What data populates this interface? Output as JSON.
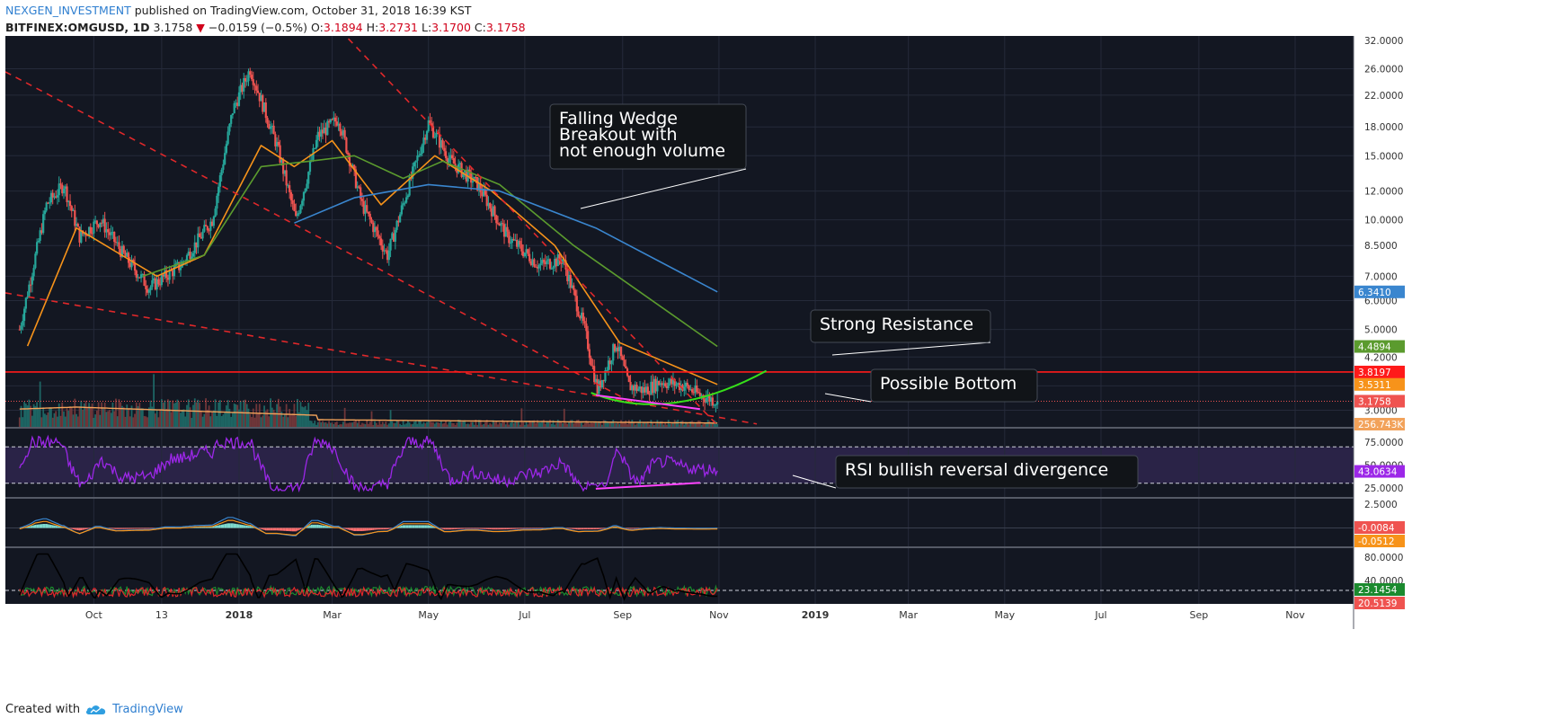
{
  "header": {
    "author": "NEXGEN_INVESTMENT",
    "published": "published on TradingView.com, October 31, 2018 16:39 KST",
    "symbol": "BITFINEX:OMGUSD, 1D",
    "last": "3.1758",
    "change_arrow": "▼",
    "change": "−0.0159 (−0.5%)",
    "o_label": "O:",
    "o": "3.1894",
    "h_label": "H:",
    "h": "3.2731",
    "l_label": "L:",
    "l": "3.1700",
    "c_label": "C:",
    "c": "3.1758"
  },
  "footer": {
    "created_with": "Created with",
    "brand": "TradingView",
    "logo_icon": "tradingview-cloud-icon"
  },
  "colors": {
    "background": "#131722",
    "grid": "#252a3a",
    "up": "#26a69a",
    "down": "#ef5350",
    "ma_orange": "#f7931a",
    "ma_green": "#5b9b2e",
    "ma_blue": "#3a86cf",
    "resistance": "#ff1a1a",
    "trendline": "#e0282a",
    "rsi": "#9c27e8",
    "bottom_curve": "#36e01a",
    "divergence": "#ff44ff"
  },
  "chart_data": {
    "type": "candlestick",
    "x_axis_labels": [
      "Oct",
      "13",
      "2018",
      "Mar",
      "May",
      "Jul",
      "Sep",
      "Nov",
      "2019",
      "Mar",
      "May",
      "Jul",
      "Sep",
      "Nov"
    ],
    "y_scale": "log",
    "price_axis": {
      "ylim": [
        2.7,
        32.0
      ],
      "ticks": [
        "32.0000",
        "26.0000",
        "22.0000",
        "18.0000",
        "15.0000",
        "12.0000",
        "10.0000",
        "8.5000",
        "7.0000",
        "6.0000",
        "5.0000",
        "4.2000",
        "3.5000",
        "3.0000"
      ]
    },
    "price_close_approx": [
      {
        "date": "2017-08-15",
        "close": 5.0
      },
      {
        "date": "2017-09-01",
        "close": 11.0
      },
      {
        "date": "2017-09-12",
        "close": 12.5
      },
      {
        "date": "2017-09-22",
        "close": 9.0
      },
      {
        "date": "2017-10-05",
        "close": 10.0
      },
      {
        "date": "2017-10-20",
        "close": 8.0
      },
      {
        "date": "2017-11-05",
        "close": 6.5
      },
      {
        "date": "2017-11-25",
        "close": 7.5
      },
      {
        "date": "2017-12-15",
        "close": 10.0
      },
      {
        "date": "2017-12-28",
        "close": 20.0
      },
      {
        "date": "2018-01-08",
        "close": 26.0
      },
      {
        "date": "2018-01-25",
        "close": 16.0
      },
      {
        "date": "2018-02-06",
        "close": 10.0
      },
      {
        "date": "2018-02-20",
        "close": 17.0
      },
      {
        "date": "2018-03-05",
        "close": 19.0
      },
      {
        "date": "2018-03-20",
        "close": 11.0
      },
      {
        "date": "2018-04-05",
        "close": 8.0
      },
      {
        "date": "2018-04-20",
        "close": 13.0
      },
      {
        "date": "2018-05-01",
        "close": 18.5
      },
      {
        "date": "2018-05-15",
        "close": 14.5
      },
      {
        "date": "2018-06-01",
        "close": 12.5
      },
      {
        "date": "2018-06-20",
        "close": 9.0
      },
      {
        "date": "2018-07-10",
        "close": 7.5
      },
      {
        "date": "2018-07-25",
        "close": 7.8
      },
      {
        "date": "2018-08-08",
        "close": 5.0
      },
      {
        "date": "2018-08-16",
        "close": 3.4
      },
      {
        "date": "2018-08-28",
        "close": 4.6
      },
      {
        "date": "2018-09-05",
        "close": 3.5
      },
      {
        "date": "2018-09-15",
        "close": 3.4
      },
      {
        "date": "2018-09-25",
        "close": 3.6
      },
      {
        "date": "2018-10-10",
        "close": 3.5
      },
      {
        "date": "2018-10-20",
        "close": 3.3
      },
      {
        "date": "2018-10-31",
        "close": 3.1758
      }
    ],
    "moving_averages_approx": [
      {
        "name_color": "ma_orange",
        "points": [
          [
            "2017-08-20",
            4.5
          ],
          [
            "2017-09-20",
            9.5
          ],
          [
            "2017-11-10",
            7.0
          ],
          [
            "2017-12-10",
            8.0
          ],
          [
            "2018-01-15",
            16.0
          ],
          [
            "2018-02-05",
            14.0
          ],
          [
            "2018-03-01",
            16.5
          ],
          [
            "2018-04-01",
            11.0
          ],
          [
            "2018-05-05",
            15.0
          ],
          [
            "2018-06-10",
            12.0
          ],
          [
            "2018-07-20",
            8.5
          ],
          [
            "2018-08-30",
            4.6
          ],
          [
            "2018-10-31",
            3.5311
          ]
        ]
      },
      {
        "name_color": "ma_green",
        "points": [
          [
            "2017-11-01",
            7.0
          ],
          [
            "2017-12-10",
            8.0
          ],
          [
            "2018-01-15",
            14.0
          ],
          [
            "2018-02-15",
            14.5
          ],
          [
            "2018-03-15",
            15.0
          ],
          [
            "2018-04-15",
            13.0
          ],
          [
            "2018-05-10",
            14.5
          ],
          [
            "2018-06-15",
            12.5
          ],
          [
            "2018-08-01",
            8.5
          ],
          [
            "2018-10-31",
            4.4894
          ]
        ]
      },
      {
        "name_color": "ma_blue",
        "points": [
          [
            "2018-02-05",
            9.8
          ],
          [
            "2018-03-15",
            11.5
          ],
          [
            "2018-05-01",
            12.5
          ],
          [
            "2018-06-15",
            12.0
          ],
          [
            "2018-08-15",
            9.5
          ],
          [
            "2018-10-31",
            6.341
          ]
        ]
      }
    ],
    "price_labels": [
      {
        "value": "6.3410",
        "color": "ma_blue"
      },
      {
        "value": "4.4894",
        "color": "ma_green"
      },
      {
        "value": "3.8197",
        "color": "resistance"
      },
      {
        "value": "3.5311",
        "color": "ma_orange"
      },
      {
        "value": "3.1758",
        "color": "down"
      }
    ],
    "resistance_level": 3.8197,
    "volume": {
      "last_label": "256.743K"
    },
    "rsi": {
      "ticks": [
        "75.0000",
        "50.0000",
        "25.0000"
      ],
      "levels": [
        70,
        30
      ],
      "last": "43.0634",
      "ylim": [
        15,
        90
      ]
    },
    "macd": {
      "ticks": [
        "2.5000"
      ],
      "last_labels": [
        {
          "value": "-0.0084",
          "color": "down"
        },
        {
          "value": "-0.0512",
          "color": "ma_orange"
        }
      ]
    },
    "dmi": {
      "ticks": [
        "80.0000",
        "40.0000"
      ],
      "last_labels": [
        {
          "value": "23.1454",
          "color": "#1b8a2e"
        },
        {
          "value": "20.5139",
          "color": "down"
        }
      ]
    },
    "annotations": [
      {
        "text": "Falling Wedge\nBreakout with\nnot enough volume"
      },
      {
        "text": "Strong Resistance"
      },
      {
        "text": "Possible Bottom"
      },
      {
        "text": "RSI bullish reversal divergence"
      }
    ]
  }
}
